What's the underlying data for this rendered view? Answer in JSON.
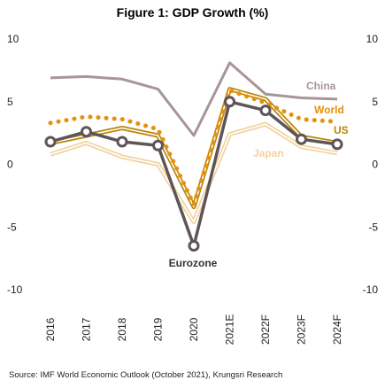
{
  "chart_data": {
    "type": "line",
    "title": "Figure 1: GDP Growth (%)",
    "categories": [
      "2016",
      "2017",
      "2018",
      "2019",
      "2020",
      "2021E",
      "2022F",
      "2023F",
      "2024F"
    ],
    "ylim": [
      -10,
      10
    ],
    "yticks": [
      10,
      5,
      0,
      -5,
      -10
    ],
    "grid": false,
    "series": [
      {
        "name": "China",
        "color": "#a99497",
        "style": "solid",
        "values": [
          6.9,
          7.0,
          6.8,
          6.0,
          2.3,
          8.1,
          5.6,
          5.3,
          5.2
        ]
      },
      {
        "name": "World",
        "color": "#e8900a",
        "style": "dotted",
        "values": [
          3.3,
          3.8,
          3.6,
          2.8,
          -3.2,
          5.9,
          4.9,
          3.6,
          3.4
        ]
      },
      {
        "name": "US",
        "color": "#b8860b",
        "style": "double",
        "values": [
          1.7,
          2.3,
          2.9,
          2.3,
          -3.4,
          6.0,
          5.2,
          2.2,
          1.7
        ]
      },
      {
        "name": "Japan",
        "color": "#f2d3a0",
        "style": "double-light",
        "values": [
          0.8,
          1.7,
          0.6,
          0.0,
          -4.6,
          2.4,
          3.2,
          1.4,
          0.9
        ]
      },
      {
        "name": "Eurozone",
        "color": "#5e5558",
        "style": "marker",
        "values": [
          1.8,
          2.6,
          1.8,
          1.5,
          -6.5,
          5.0,
          4.3,
          2.0,
          1.6
        ]
      }
    ]
  },
  "source": "Source: IMF World Economic Outlook (October 2021), Krungsri Research"
}
